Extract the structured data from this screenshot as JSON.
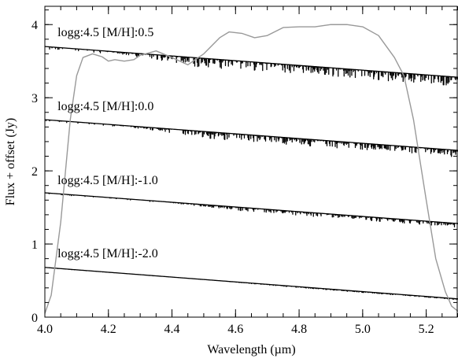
{
  "chart_data": {
    "type": "line",
    "title": "",
    "xlabel": "Wavelength (µm)",
    "ylabel": "Flux + offset (Jy)",
    "xlim": [
      4.0,
      5.3
    ],
    "ylim": [
      0,
      4.25
    ],
    "x_ticks": [
      4.0,
      4.2,
      4.4,
      4.6,
      4.8,
      5.0,
      5.2
    ],
    "y_ticks": [
      0,
      1,
      2,
      3,
      4
    ],
    "x_tick_labels": [
      "4.0",
      "4.2",
      "4.4",
      "4.6",
      "4.8",
      "5.0",
      "5.2"
    ],
    "y_tick_labels": [
      "0",
      "1",
      "2",
      "3",
      "4"
    ],
    "grid": false,
    "legend": "none",
    "annotations": [
      {
        "text": "logg:4.5 [M/H]:0.5",
        "x": 4.04,
        "y": 3.84
      },
      {
        "text": "logg:4.5 [M/H]:0.0",
        "x": 4.04,
        "y": 2.83
      },
      {
        "text": "logg:4.5 [M/H]:-1.0",
        "x": 4.04,
        "y": 1.82
      },
      {
        "text": "logg:4.5 [M/H]:-2.0",
        "x": 4.04,
        "y": 0.82
      }
    ],
    "series": [
      {
        "color": "#000000",
        "x": [
          4.0,
          5.3
        ],
        "y": [
          3.7,
          3.28
        ],
        "line_depth": 0.12,
        "line_onset": 4.18
      },
      {
        "color": "#000000",
        "x": [
          4.0,
          5.3
        ],
        "y": [
          2.7,
          2.28
        ],
        "line_depth": 0.09,
        "line_onset": 4.22
      },
      {
        "color": "#000000",
        "x": [
          4.0,
          5.3
        ],
        "y": [
          1.7,
          1.28
        ],
        "line_depth": 0.05,
        "line_onset": 4.35
      },
      {
        "color": "#000000",
        "x": [
          4.0,
          5.3
        ],
        "y": [
          0.68,
          0.25
        ],
        "line_depth": 0.012,
        "line_onset": 4.5
      },
      {
        "color": "#999999",
        "x": [
          4.0,
          4.02,
          4.05,
          4.08,
          4.1,
          4.12,
          4.15,
          4.18,
          4.2,
          4.22,
          4.25,
          4.28,
          4.3,
          4.35,
          4.4,
          4.45,
          4.5,
          4.55,
          4.58,
          4.62,
          4.66,
          4.7,
          4.75,
          4.8,
          4.85,
          4.9,
          4.95,
          5.0,
          5.05,
          5.1,
          5.13,
          5.16,
          5.2,
          5.23,
          5.26,
          5.28,
          5.3
        ],
        "y": [
          0.05,
          0.3,
          1.3,
          2.7,
          3.3,
          3.55,
          3.6,
          3.56,
          3.5,
          3.52,
          3.5,
          3.52,
          3.58,
          3.64,
          3.55,
          3.45,
          3.6,
          3.82,
          3.9,
          3.88,
          3.82,
          3.85,
          3.96,
          3.97,
          3.97,
          4.0,
          4.0,
          3.97,
          3.85,
          3.55,
          3.3,
          2.7,
          1.6,
          0.8,
          0.35,
          0.15,
          0.08
        ]
      }
    ]
  }
}
